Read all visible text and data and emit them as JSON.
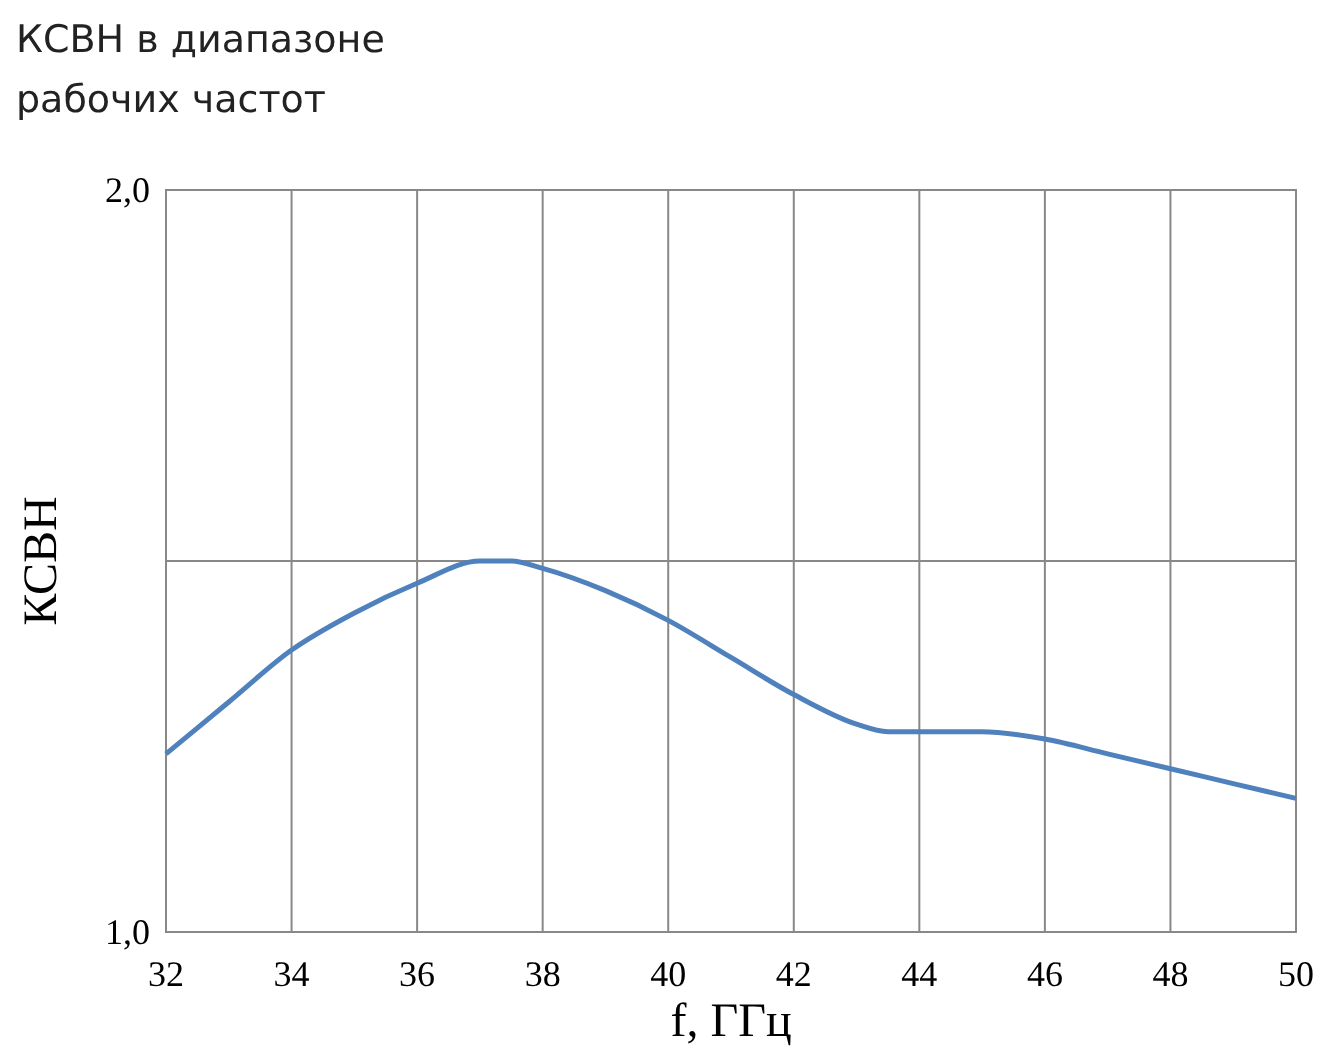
{
  "chart_data": {
    "type": "line",
    "title": "КСВН в диапазоне\nрабочих частот",
    "xlabel": "f, ГГц",
    "ylabel": "КСВН",
    "x": [
      32,
      33,
      34,
      35,
      36,
      37,
      37.5,
      38,
      39,
      40,
      41,
      42,
      43,
      43.5,
      44,
      44.5,
      45,
      46,
      47,
      48,
      49,
      50
    ],
    "series": [
      {
        "color": "#4f81bd",
        "values": [
          1.24,
          1.31,
          1.38,
          1.43,
          1.47,
          1.5,
          1.5,
          1.49,
          1.46,
          1.42,
          1.37,
          1.32,
          1.28,
          1.27,
          1.27,
          1.27,
          1.27,
          1.26,
          1.24,
          1.22,
          1.2,
          1.18
        ]
      }
    ],
    "xlim": [
      32,
      50
    ],
    "xticks": [
      32,
      34,
      36,
      38,
      40,
      42,
      44,
      46,
      48,
      50
    ],
    "ylim": [
      1,
      2
    ],
    "yticks": [
      {
        "value": 1,
        "label": "1,0"
      },
      {
        "value": 1.5,
        "label": null
      },
      {
        "value": 2,
        "label": "2,0"
      }
    ],
    "grid": true,
    "marker": "none",
    "line_style": "solid"
  }
}
